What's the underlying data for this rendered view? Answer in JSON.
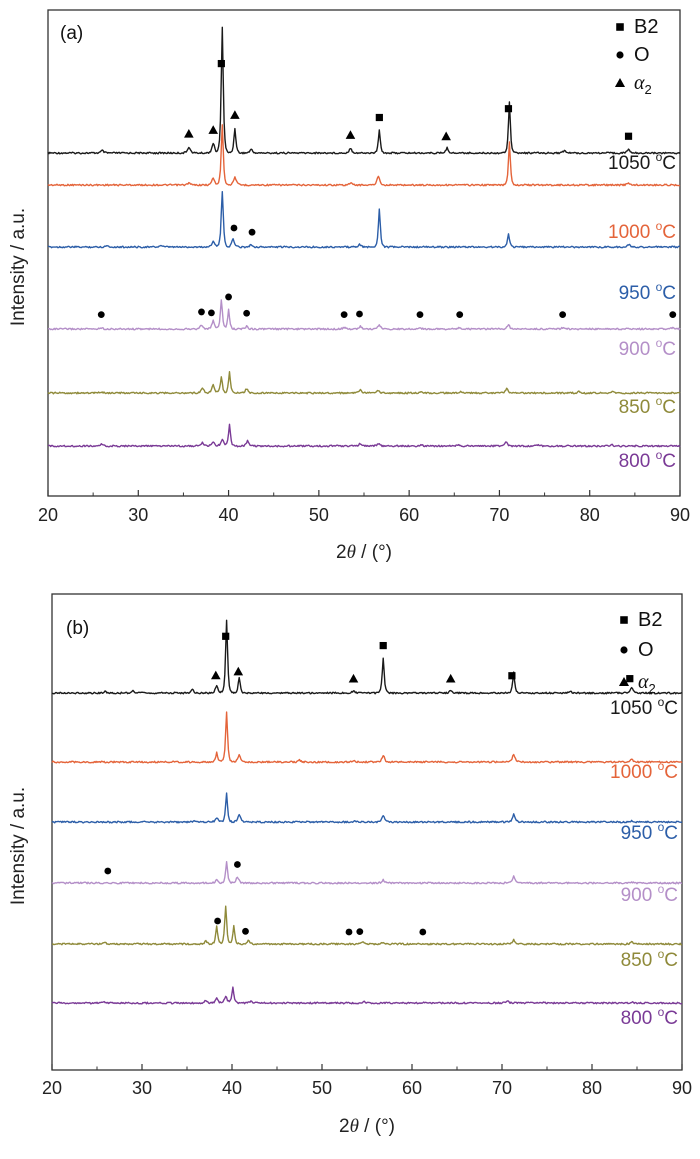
{
  "chart_data": [
    {
      "type": "line",
      "panel_label": "(a)",
      "xlabel": "2θ / (°)",
      "xlabel_parts": {
        "pre": "2",
        "italic": "θ",
        "post": " / (°)"
      },
      "ylabel": "Intensity / a.u.",
      "xlim": [
        20,
        90
      ],
      "x_ticks": [
        "20",
        "30",
        "40",
        "50",
        "60",
        "70",
        "80",
        "90"
      ],
      "legend": [
        {
          "marker": "square",
          "label": "B2"
        },
        {
          "marker": "circle",
          "label": "O"
        },
        {
          "marker": "triangle",
          "label": "α",
          "sub": "2"
        }
      ],
      "series": [
        {
          "name": "1050 °C",
          "label_main": "1050 ",
          "label_deg": "o",
          "label_unit": "C",
          "color": "#1a1a1a",
          "peaks": [
            {
              "x": 26.0,
              "h": 0.02
            },
            {
              "x": 35.6,
              "h": 0.05
            },
            {
              "x": 38.3,
              "h": 0.08
            },
            {
              "x": 39.3,
              "h": 1.0
            },
            {
              "x": 40.7,
              "h": 0.2
            },
            {
              "x": 42.5,
              "h": 0.03
            },
            {
              "x": 53.5,
              "h": 0.04
            },
            {
              "x": 56.7,
              "h": 0.18
            },
            {
              "x": 64.2,
              "h": 0.04
            },
            {
              "x": 71.1,
              "h": 0.41
            },
            {
              "x": 77.2,
              "h": 0.02
            },
            {
              "x": 84.3,
              "h": 0.03
            }
          ]
        },
        {
          "name": "1000 °C",
          "label_main": "1000 ",
          "label_deg": "o",
          "label_unit": "C",
          "color": "#e4643a",
          "peaks": [
            {
              "x": 35.6,
              "h": 0.02
            },
            {
              "x": 38.3,
              "h": 0.07
            },
            {
              "x": 39.3,
              "h": 0.58
            },
            {
              "x": 40.7,
              "h": 0.08
            },
            {
              "x": 53.5,
              "h": 0.02
            },
            {
              "x": 56.6,
              "h": 0.09
            },
            {
              "x": 71.1,
              "h": 0.41
            },
            {
              "x": 84.3,
              "h": 0.02
            }
          ]
        },
        {
          "name": "950 °C",
          "label_main": "950 ",
          "label_deg": "o",
          "label_unit": "C",
          "color": "#2c5ea8",
          "peaks": [
            {
              "x": 26.5,
              "h": 0.02
            },
            {
              "x": 32.5,
              "h": 0.02
            },
            {
              "x": 38.3,
              "h": 0.08
            },
            {
              "x": 39.3,
              "h": 0.68
            },
            {
              "x": 40.5,
              "h": 0.1
            },
            {
              "x": 42.5,
              "h": 0.03
            },
            {
              "x": 54.5,
              "h": 0.03
            },
            {
              "x": 56.7,
              "h": 0.46
            },
            {
              "x": 71.0,
              "h": 0.17
            },
            {
              "x": 84.3,
              "h": 0.03
            }
          ]
        },
        {
          "name": "900 °C",
          "label_main": "900 ",
          "label_deg": "o",
          "label_unit": "C",
          "color": "#b48fc8",
          "peaks": [
            {
              "x": 25.9,
              "h": 0.02
            },
            {
              "x": 37.0,
              "h": 0.06
            },
            {
              "x": 38.3,
              "h": 0.12
            },
            {
              "x": 39.2,
              "h": 0.43
            },
            {
              "x": 40.0,
              "h": 0.28
            },
            {
              "x": 42.0,
              "h": 0.04
            },
            {
              "x": 52.8,
              "h": 0.02
            },
            {
              "x": 54.6,
              "h": 0.04
            },
            {
              "x": 56.7,
              "h": 0.06
            },
            {
              "x": 61.2,
              "h": 0.02
            },
            {
              "x": 65.6,
              "h": 0.02
            },
            {
              "x": 71.0,
              "h": 0.06
            },
            {
              "x": 77.0,
              "h": 0.02
            },
            {
              "x": 89.2,
              "h": 0.02
            }
          ]
        },
        {
          "name": "850 °C",
          "label_main": "850 ",
          "label_deg": "o",
          "label_unit": "C",
          "color": "#8f8a3a",
          "peaks": [
            {
              "x": 25.9,
              "h": 0.02
            },
            {
              "x": 37.1,
              "h": 0.09
            },
            {
              "x": 38.3,
              "h": 0.14
            },
            {
              "x": 39.2,
              "h": 0.26
            },
            {
              "x": 40.1,
              "h": 0.34
            },
            {
              "x": 42.0,
              "h": 0.07
            },
            {
              "x": 54.6,
              "h": 0.05
            },
            {
              "x": 56.6,
              "h": 0.04
            },
            {
              "x": 61.3,
              "h": 0.03
            },
            {
              "x": 65.6,
              "h": 0.02
            },
            {
              "x": 70.8,
              "h": 0.07
            },
            {
              "x": 78.8,
              "h": 0.02
            },
            {
              "x": 82.5,
              "h": 0.02
            }
          ]
        },
        {
          "name": "800 °C",
          "label_main": "800 ",
          "label_deg": "o",
          "label_unit": "C",
          "color": "#7a3a96",
          "peaks": [
            {
              "x": 25.9,
              "h": 0.03
            },
            {
              "x": 37.1,
              "h": 0.07
            },
            {
              "x": 38.3,
              "h": 0.08
            },
            {
              "x": 39.3,
              "h": 0.12
            },
            {
              "x": 40.1,
              "h": 0.42
            },
            {
              "x": 42.1,
              "h": 0.1
            },
            {
              "x": 54.6,
              "h": 0.05
            },
            {
              "x": 56.6,
              "h": 0.04
            },
            {
              "x": 61.3,
              "h": 0.03
            },
            {
              "x": 65.6,
              "h": 0.02
            },
            {
              "x": 70.7,
              "h": 0.08
            },
            {
              "x": 74.3,
              "h": 0.02
            },
            {
              "x": 82.5,
              "h": 0.02
            }
          ]
        }
      ],
      "markers": [
        {
          "series": 0,
          "shape": "square",
          "x": 39.2
        },
        {
          "series": 0,
          "shape": "square",
          "x": 56.7
        },
        {
          "series": 0,
          "shape": "square",
          "x": 71.0
        },
        {
          "series": 0,
          "shape": "square",
          "x": 84.3
        },
        {
          "series": 0,
          "shape": "triangle",
          "x": 35.6
        },
        {
          "series": 0,
          "shape": "triangle",
          "x": 38.3
        },
        {
          "series": 0,
          "shape": "triangle",
          "x": 40.7
        },
        {
          "series": 0,
          "shape": "triangle",
          "x": 53.5
        },
        {
          "series": 0,
          "shape": "triangle",
          "x": 64.1
        },
        {
          "series": 2,
          "shape": "circle",
          "x": 40.6
        },
        {
          "series": 2,
          "shape": "circle",
          "x": 42.6
        },
        {
          "series": 3,
          "shape": "circle",
          "x": 25.9
        },
        {
          "series": 3,
          "shape": "circle",
          "x": 37.0
        },
        {
          "series": 3,
          "shape": "circle",
          "x": 38.1
        },
        {
          "series": 3,
          "shape": "circle",
          "x": 40.0
        },
        {
          "series": 3,
          "shape": "circle",
          "x": 42.0
        },
        {
          "series": 3,
          "shape": "circle",
          "x": 52.8
        },
        {
          "series": 3,
          "shape": "circle",
          "x": 54.5
        },
        {
          "series": 3,
          "shape": "circle",
          "x": 61.2
        },
        {
          "series": 3,
          "shape": "circle",
          "x": 65.6
        },
        {
          "series": 3,
          "shape": "circle",
          "x": 77.0
        },
        {
          "series": 3,
          "shape": "circle",
          "x": 89.2
        }
      ]
    },
    {
      "type": "line",
      "panel_label": "(b)",
      "xlabel": "2θ / (°)",
      "xlabel_parts": {
        "pre": "2",
        "italic": "θ",
        "post": " / (°)"
      },
      "ylabel": "Intensity / a.u.",
      "xlim": [
        20,
        90
      ],
      "x_ticks": [
        "20",
        "30",
        "40",
        "50",
        "60",
        "70",
        "80",
        "90"
      ],
      "legend": [
        {
          "marker": "square",
          "label": "B2"
        },
        {
          "marker": "circle",
          "label": "O"
        },
        {
          "marker": "triangle",
          "label": "α",
          "sub": "2"
        }
      ],
      "series": [
        {
          "name": "1050 °C",
          "label_main": "1050 ",
          "label_deg": "o",
          "label_unit": "C",
          "color": "#1a1a1a",
          "peaks": [
            {
              "x": 25.9,
              "h": 0.02
            },
            {
              "x": 29.0,
              "h": 0.03
            },
            {
              "x": 35.6,
              "h": 0.04
            },
            {
              "x": 38.3,
              "h": 0.1
            },
            {
              "x": 39.4,
              "h": 0.95
            },
            {
              "x": 40.8,
              "h": 0.2
            },
            {
              "x": 53.5,
              "h": 0.03
            },
            {
              "x": 56.8,
              "h": 0.46
            },
            {
              "x": 64.3,
              "h": 0.03
            },
            {
              "x": 71.3,
              "h": 0.27
            },
            {
              "x": 77.6,
              "h": 0.02
            },
            {
              "x": 84.4,
              "h": 0.08
            }
          ]
        },
        {
          "name": "1000 °C",
          "label_main": "1000 ",
          "label_deg": "o",
          "label_unit": "C",
          "color": "#e4643a",
          "peaks": [
            {
              "x": 38.3,
              "h": 0.16
            },
            {
              "x": 39.4,
              "h": 0.83
            },
            {
              "x": 40.8,
              "h": 0.13
            },
            {
              "x": 47.5,
              "h": 0.03
            },
            {
              "x": 53.5,
              "h": 0.02
            },
            {
              "x": 56.8,
              "h": 0.11
            },
            {
              "x": 71.3,
              "h": 0.13
            },
            {
              "x": 84.4,
              "h": 0.05
            }
          ]
        },
        {
          "name": "950 °C",
          "label_main": "950 ",
          "label_deg": "o",
          "label_unit": "C",
          "color": "#2c5ea8",
          "peaks": [
            {
              "x": 35.8,
              "h": 0.02
            },
            {
              "x": 38.3,
              "h": 0.07
            },
            {
              "x": 39.4,
              "h": 0.47
            },
            {
              "x": 40.8,
              "h": 0.13
            },
            {
              "x": 53.6,
              "h": 0.02
            },
            {
              "x": 56.8,
              "h": 0.11
            },
            {
              "x": 71.3,
              "h": 0.13
            },
            {
              "x": 84.4,
              "h": 0.02
            }
          ]
        },
        {
          "name": "900 °C",
          "label_main": "900 ",
          "label_deg": "o",
          "label_unit": "C",
          "color": "#b48fc8",
          "peaks": [
            {
              "x": 38.3,
              "h": 0.06
            },
            {
              "x": 39.4,
              "h": 0.41
            },
            {
              "x": 40.6,
              "h": 0.13
            },
            {
              "x": 56.8,
              "h": 0.06
            },
            {
              "x": 71.3,
              "h": 0.13
            },
            {
              "x": 84.4,
              "h": 0.02
            }
          ]
        },
        {
          "name": "850 °C",
          "label_main": "850 ",
          "label_deg": "o",
          "label_unit": "C",
          "color": "#8f8a3a",
          "peaks": [
            {
              "x": 25.9,
              "h": 0.02
            },
            {
              "x": 37.1,
              "h": 0.05
            },
            {
              "x": 38.3,
              "h": 0.3
            },
            {
              "x": 39.3,
              "h": 0.64
            },
            {
              "x": 40.2,
              "h": 0.3
            },
            {
              "x": 41.8,
              "h": 0.06
            },
            {
              "x": 54.5,
              "h": 0.03
            },
            {
              "x": 56.8,
              "h": 0.03
            },
            {
              "x": 71.3,
              "h": 0.07
            },
            {
              "x": 84.4,
              "h": 0.03
            }
          ]
        },
        {
          "name": "800 °C",
          "label_main": "800 ",
          "label_deg": "o",
          "label_unit": "C",
          "color": "#7a3a96",
          "peaks": [
            {
              "x": 25.9,
              "h": 0.02
            },
            {
              "x": 37.1,
              "h": 0.05
            },
            {
              "x": 38.3,
              "h": 0.1
            },
            {
              "x": 39.3,
              "h": 0.15
            },
            {
              "x": 40.1,
              "h": 0.34
            },
            {
              "x": 42.1,
              "h": 0.04
            },
            {
              "x": 54.6,
              "h": 0.03
            },
            {
              "x": 61.3,
              "h": 0.02
            },
            {
              "x": 70.6,
              "h": 0.05
            },
            {
              "x": 74.3,
              "h": 0.02
            },
            {
              "x": 84.4,
              "h": 0.02
            }
          ]
        }
      ],
      "markers": [
        {
          "series": 0,
          "shape": "square",
          "x": 39.3
        },
        {
          "series": 0,
          "shape": "square",
          "x": 56.8
        },
        {
          "series": 0,
          "shape": "square",
          "x": 71.1
        },
        {
          "series": 0,
          "shape": "square",
          "x": 84.2
        },
        {
          "series": 0,
          "shape": "triangle",
          "x": 38.2
        },
        {
          "series": 0,
          "shape": "triangle",
          "x": 40.7
        },
        {
          "series": 0,
          "shape": "triangle",
          "x": 53.5
        },
        {
          "series": 0,
          "shape": "triangle",
          "x": 64.3
        },
        {
          "series": 3,
          "shape": "circle",
          "x": 26.2
        },
        {
          "series": 3,
          "shape": "circle",
          "x": 40.6
        },
        {
          "series": 4,
          "shape": "circle",
          "x": 38.4
        },
        {
          "series": 4,
          "shape": "circle",
          "x": 41.5
        },
        {
          "series": 4,
          "shape": "circle",
          "x": 53.0
        },
        {
          "series": 4,
          "shape": "circle",
          "x": 54.2
        },
        {
          "series": 4,
          "shape": "circle",
          "x": 61.2
        }
      ]
    }
  ]
}
